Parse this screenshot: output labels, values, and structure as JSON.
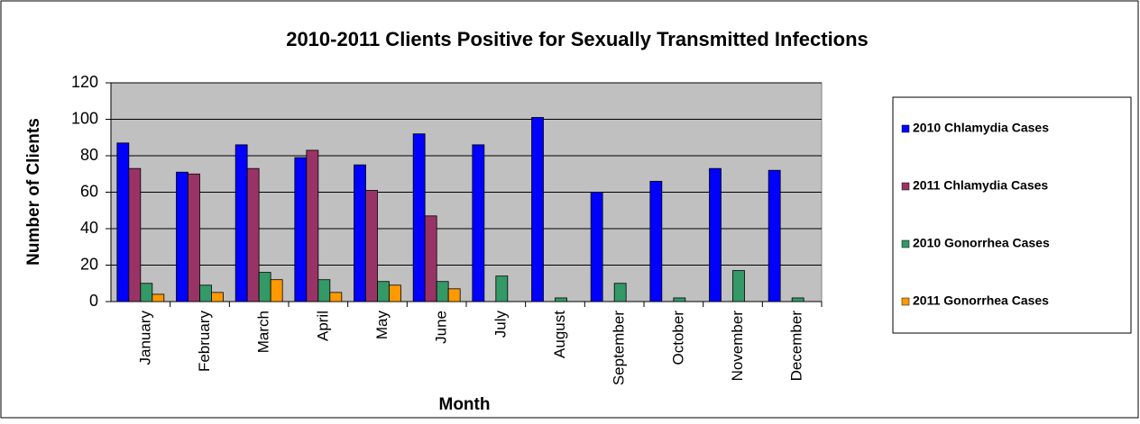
{
  "chart_data": {
    "type": "bar",
    "title": "2010-2011 Clients Positive for Sexually Transmitted Infections",
    "x_label": "Month",
    "y_label": "Number of Clients",
    "categories": [
      "January",
      "February",
      "March",
      "April",
      "May",
      "June",
      "July",
      "August",
      "September",
      "October",
      "November",
      "December"
    ],
    "series": [
      {
        "name": "2010 Chlamydia Cases",
        "color": "#0000ff",
        "values": [
          87,
          71,
          86,
          79,
          75,
          92,
          86,
          101,
          60,
          66,
          73,
          72
        ]
      },
      {
        "name": "2011 Chlamydia Cases",
        "color": "#993366",
        "values": [
          73,
          70,
          73,
          83,
          61,
          47,
          null,
          null,
          null,
          null,
          null,
          null
        ]
      },
      {
        "name": "2010 Gonorrhea Cases",
        "color": "#339966",
        "values": [
          10,
          9,
          16,
          12,
          11,
          11,
          14,
          2,
          10,
          2,
          17,
          2
        ]
      },
      {
        "name": "2011 Gonorrhea Cases",
        "color": "#ff9900",
        "values": [
          4,
          5,
          12,
          5,
          9,
          7,
          null,
          null,
          null,
          null,
          null,
          null
        ]
      }
    ],
    "ylim": [
      0,
      120
    ],
    "yticks": [
      0,
      20,
      40,
      60,
      80,
      100,
      120
    ],
    "grid": true,
    "plot_background": "#c0c0c0",
    "legend": "right"
  }
}
